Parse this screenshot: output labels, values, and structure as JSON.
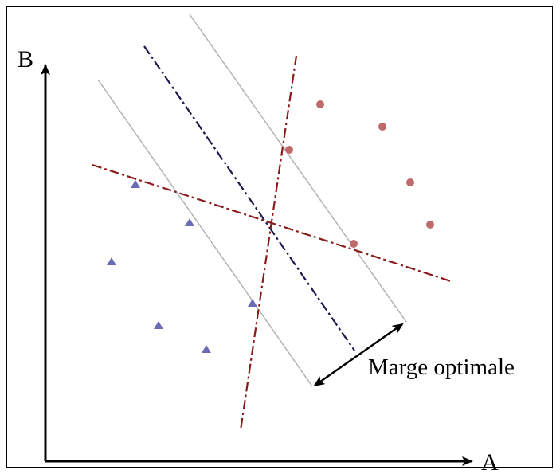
{
  "axes": {
    "x_label": "A",
    "y_label": "B"
  },
  "annotation": {
    "margin_label": "Marge optimale"
  },
  "colors": {
    "axis": "#000000",
    "triangle_points": "#6b6bb5",
    "circle_points": "#c06b6b",
    "optimal_hyperplane": "#1a1a4e",
    "other_hyperplanes": "#8b1a1a",
    "margin_boundaries": "#b3b3b3",
    "margin_arrow": "#000000"
  },
  "chart_data": {
    "type": "scatter",
    "series": [
      {
        "marker": "triangle",
        "color": "#6b6bb5",
        "count": 6
      },
      {
        "marker": "circle",
        "color": "#c06b6b",
        "count": 6
      }
    ],
    "lines": [
      {
        "style": "dash-dot",
        "color": "#1a1a4e",
        "role": "optimal separator"
      },
      {
        "style": "dash-dot",
        "color": "#8b1a1a",
        "role": "non-optimal separator"
      },
      {
        "style": "dash-dot",
        "color": "#8b1a1a",
        "role": "non-optimal separator"
      },
      {
        "style": "solid",
        "color": "#b3b3b3",
        "role": "margin boundary"
      },
      {
        "style": "solid",
        "color": "#b3b3b3",
        "role": "margin boundary"
      }
    ]
  }
}
